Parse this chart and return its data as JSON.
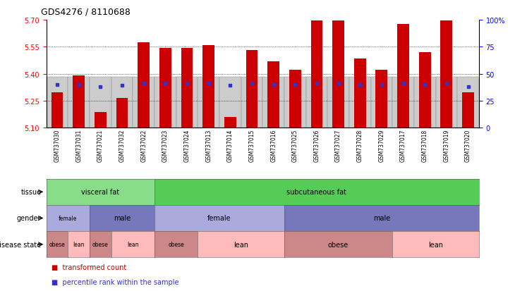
{
  "title": "GDS4276 / 8110688",
  "samples": [
    "GSM737030",
    "GSM737031",
    "GSM737021",
    "GSM737032",
    "GSM737022",
    "GSM737023",
    "GSM737024",
    "GSM737013",
    "GSM737014",
    "GSM737015",
    "GSM737016",
    "GSM737025",
    "GSM737026",
    "GSM737027",
    "GSM737028",
    "GSM737029",
    "GSM737017",
    "GSM737018",
    "GSM737019",
    "GSM737020"
  ],
  "bar_tops": [
    5.295,
    5.39,
    5.185,
    5.265,
    5.575,
    5.545,
    5.545,
    5.56,
    5.16,
    5.53,
    5.47,
    5.42,
    5.695,
    5.695,
    5.485,
    5.42,
    5.675,
    5.52,
    5.695,
    5.295
  ],
  "percentile_vals": [
    40,
    40,
    38,
    39,
    41,
    41,
    41,
    41,
    39,
    41,
    40,
    40,
    41,
    41,
    40,
    40,
    41,
    40,
    41,
    38
  ],
  "baseline": 5.1,
  "ylim_left": [
    5.1,
    5.7
  ],
  "ylim_right": [
    0,
    100
  ],
  "yticks_left": [
    5.1,
    5.25,
    5.4,
    5.55,
    5.7
  ],
  "yticks_right": [
    0,
    25,
    50,
    75,
    100
  ],
  "bar_color": "#cc0000",
  "blue_color": "#3333cc",
  "xticklabel_bg": "#cccccc",
  "tissue_groups": [
    {
      "label": "visceral fat",
      "start": 0,
      "end": 4,
      "color": "#88dd88"
    },
    {
      "label": "subcutaneous fat",
      "start": 5,
      "end": 19,
      "color": "#55cc55"
    }
  ],
  "gender_groups": [
    {
      "label": "female",
      "start": 0,
      "end": 1,
      "color": "#aaaadd"
    },
    {
      "label": "male",
      "start": 2,
      "end": 4,
      "color": "#7777bb"
    },
    {
      "label": "female",
      "start": 5,
      "end": 10,
      "color": "#aaaadd"
    },
    {
      "label": "male",
      "start": 11,
      "end": 19,
      "color": "#7777bb"
    }
  ],
  "disease_groups": [
    {
      "label": "obese",
      "start": 0,
      "end": 0,
      "color": "#cc8888"
    },
    {
      "label": "lean",
      "start": 1,
      "end": 1,
      "color": "#ffbbbb"
    },
    {
      "label": "obese",
      "start": 2,
      "end": 2,
      "color": "#cc8888"
    },
    {
      "label": "lean",
      "start": 3,
      "end": 4,
      "color": "#ffbbbb"
    },
    {
      "label": "obese",
      "start": 5,
      "end": 6,
      "color": "#cc8888"
    },
    {
      "label": "lean",
      "start": 7,
      "end": 10,
      "color": "#ffbbbb"
    },
    {
      "label": "obese",
      "start": 11,
      "end": 15,
      "color": "#cc8888"
    },
    {
      "label": "lean",
      "start": 16,
      "end": 19,
      "color": "#ffbbbb"
    }
  ],
  "row_labels": [
    "tissue",
    "gender",
    "disease state"
  ]
}
